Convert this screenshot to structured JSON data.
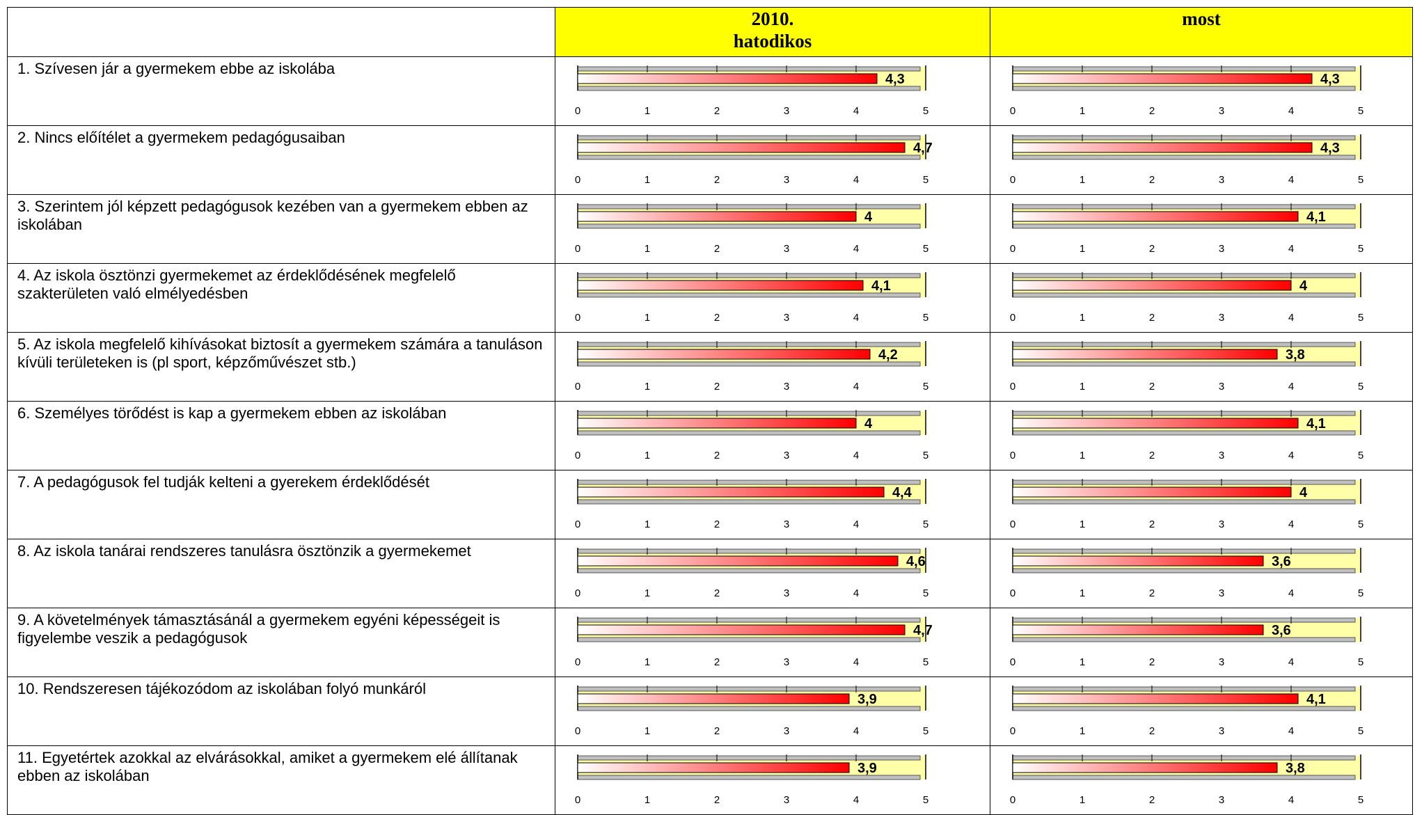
{
  "header": {
    "col1_lines": [
      "2010.",
      "hatodikos"
    ],
    "col2": "most"
  },
  "axis": {
    "xlim": [
      0,
      5
    ],
    "xticks": [
      0,
      1,
      2,
      3,
      4,
      5
    ]
  },
  "colors": {
    "header": "#ffff00",
    "plot": "#ffffa8",
    "bar_end": "#ff0000",
    "band": "#c0c0c0"
  },
  "rows": [
    {
      "label": "1. Szívesen jár a gyermekem ebbe az iskolába",
      "values": [
        4.3,
        4.3
      ],
      "value_labels": [
        "4,3",
        "4,3"
      ]
    },
    {
      "label": "2. Nincs előítélet a gyermekem pedagógusaiban",
      "values": [
        4.7,
        4.3
      ],
      "value_labels": [
        "4,7",
        "4,3"
      ]
    },
    {
      "label": "3. Szerintem jól képzett pedagógusok kezében van a gyermekem ebben az iskolában",
      "values": [
        4,
        4.1
      ],
      "value_labels": [
        "4",
        "4,1"
      ]
    },
    {
      "label": "4. Az iskola ösztönzi gyermekemet az érdeklődésének megfelelő szakterületen való elmélyedésben",
      "values": [
        4.1,
        4
      ],
      "value_labels": [
        "4,1",
        "4"
      ]
    },
    {
      "label": "5. Az iskola megfelelő kihívásokat biztosít a gyermekem számára a tanuláson kívüli területeken is (pl sport, képzőművészet stb.)",
      "values": [
        4.2,
        3.8
      ],
      "value_labels": [
        "4,2",
        "3,8"
      ]
    },
    {
      "label": "6. Személyes törődést is kap a gyermekem ebben az iskolában",
      "values": [
        4,
        4.1
      ],
      "value_labels": [
        "4",
        "4,1"
      ]
    },
    {
      "label": "7. A pedagógusok fel tudják kelteni a gyerekem érdeklődését",
      "values": [
        4.4,
        4
      ],
      "value_labels": [
        "4,4",
        "4"
      ]
    },
    {
      "label": "8. Az iskola tanárai rendszeres tanulásra ösztönzik a gyermekemet",
      "values": [
        4.6,
        3.6
      ],
      "value_labels": [
        "4,6",
        "3,6"
      ]
    },
    {
      "label": "9. A követelmények támasztásánál a gyermekem egyéni képességeit is figyelembe veszik a pedagógusok",
      "values": [
        4.7,
        3.6
      ],
      "value_labels": [
        "4,7",
        "3,6"
      ]
    },
    {
      "label": "10. Rendszeresen tájékozódom az iskolában folyó munkáról",
      "values": [
        3.9,
        4.1
      ],
      "value_labels": [
        "3,9",
        "4,1"
      ]
    },
    {
      "label": "11. Egyetértek azokkal az elvárásokkal, amiket a gyermekem elé állítanak ebben az iskolában",
      "values": [
        3.9,
        3.8
      ],
      "value_labels": [
        "3,9",
        "3,8"
      ]
    }
  ]
}
